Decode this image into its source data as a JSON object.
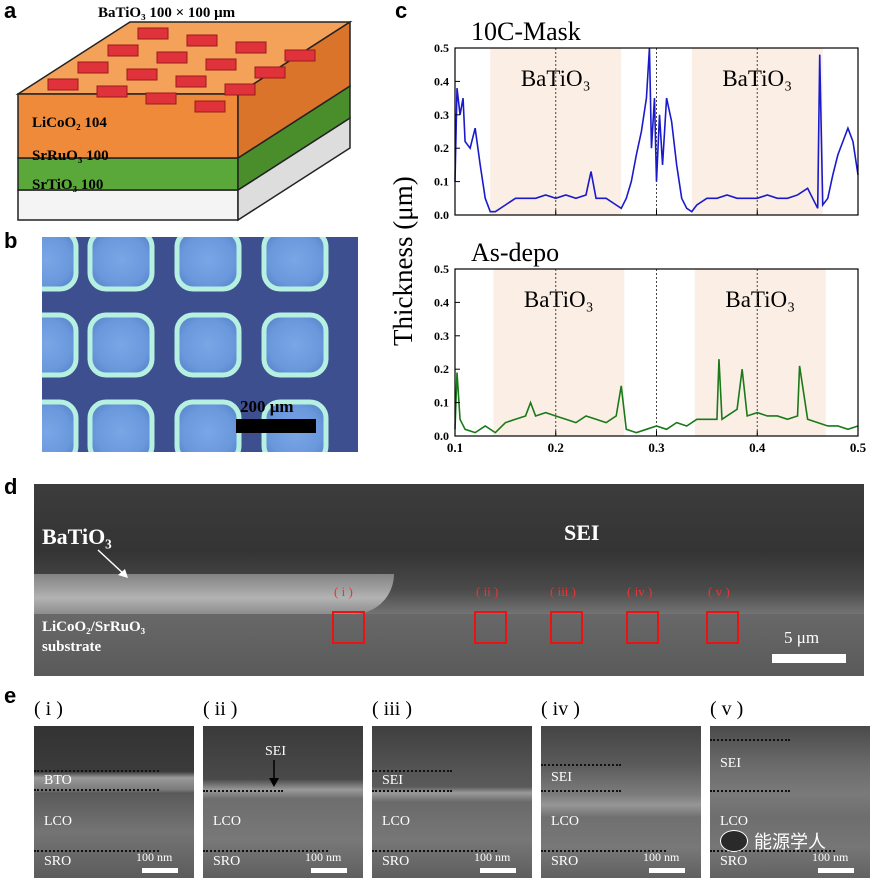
{
  "panels": {
    "a": "a",
    "b": "b",
    "c": "c",
    "d": "d",
    "e": "e"
  },
  "panel_a": {
    "title": "BaTiO₃ 100 × 100 μm",
    "layer1": "LiCoO₂ 104",
    "layer2": "SrRuO₃ 100",
    "layer3": "SrTiO₃ 100",
    "colors": {
      "lco": "#f08a3c",
      "sro": "#5fa93a",
      "sto": "#f2f2f2",
      "bto": "#e0323a"
    }
  },
  "panel_b": {
    "scale": "200 μm"
  },
  "panel_c": {
    "ylabel": "Thickness  (μm)",
    "top_title": "10C-Mask",
    "bottom_title": "As-depo",
    "region_label": "BaTiO₃"
  },
  "chart_data": [
    {
      "type": "line",
      "title": "10C-Mask",
      "ylabel": "Thickness (μm)",
      "xlim": [
        0.1,
        0.5
      ],
      "ylim": [
        0.0,
        0.5
      ],
      "xticks": [
        "0.1",
        "0.2",
        "0.3",
        "0.4",
        "0.5"
      ],
      "yticks": [
        "0.0",
        "0.1",
        "0.2",
        "0.3",
        "0.4",
        "0.5"
      ],
      "shaded_regions": [
        [
          0.135,
          0.265
        ],
        [
          0.335,
          0.465
        ]
      ],
      "shaded_labels": [
        "BaTiO₃",
        "BaTiO₃"
      ],
      "dashed_lines": [
        0.2,
        0.3,
        0.4
      ],
      "series": [
        {
          "name": "10C-Mask",
          "color": "#1a1acc",
          "x": [
            0.1,
            0.102,
            0.105,
            0.108,
            0.11,
            0.115,
            0.12,
            0.125,
            0.13,
            0.135,
            0.14,
            0.15,
            0.16,
            0.17,
            0.18,
            0.19,
            0.2,
            0.21,
            0.22,
            0.23,
            0.235,
            0.24,
            0.25,
            0.26,
            0.265,
            0.27,
            0.275,
            0.28,
            0.285,
            0.29,
            0.293,
            0.295,
            0.298,
            0.3,
            0.303,
            0.306,
            0.31,
            0.315,
            0.32,
            0.325,
            0.33,
            0.335,
            0.34,
            0.35,
            0.36,
            0.37,
            0.38,
            0.39,
            0.4,
            0.41,
            0.42,
            0.43,
            0.44,
            0.45,
            0.455,
            0.46,
            0.462,
            0.465,
            0.47,
            0.475,
            0.48,
            0.485,
            0.49,
            0.495,
            0.5
          ],
          "y": [
            0.1,
            0.38,
            0.3,
            0.35,
            0.22,
            0.2,
            0.26,
            0.15,
            0.05,
            0.01,
            0.01,
            0.03,
            0.05,
            0.05,
            0.05,
            0.06,
            0.05,
            0.06,
            0.05,
            0.06,
            0.13,
            0.05,
            0.05,
            0.03,
            0.02,
            0.05,
            0.1,
            0.18,
            0.25,
            0.35,
            0.5,
            0.2,
            0.35,
            0.1,
            0.3,
            0.15,
            0.35,
            0.28,
            0.15,
            0.05,
            0.02,
            0.01,
            0.03,
            0.05,
            0.05,
            0.06,
            0.05,
            0.05,
            0.05,
            0.06,
            0.05,
            0.05,
            0.06,
            0.08,
            0.05,
            0.02,
            0.48,
            0.03,
            0.05,
            0.12,
            0.18,
            0.22,
            0.26,
            0.22,
            0.12
          ]
        }
      ]
    },
    {
      "type": "line",
      "title": "As-depo",
      "ylabel": "Thickness (μm)",
      "xlim": [
        0.1,
        0.5
      ],
      "ylim": [
        0.0,
        0.5
      ],
      "xticks": [
        "0.1",
        "0.2",
        "0.3",
        "0.4",
        "0.5"
      ],
      "yticks": [
        "0.0",
        "0.1",
        "0.2",
        "0.3",
        "0.4",
        "0.5"
      ],
      "shaded_regions": [
        [
          0.138,
          0.268
        ],
        [
          0.338,
          0.468
        ]
      ],
      "shaded_labels": [
        "BaTiO₃",
        "BaTiO₃"
      ],
      "dashed_lines": [
        0.2,
        0.3,
        0.4
      ],
      "series": [
        {
          "name": "As-depo",
          "color": "#1a7a1a",
          "x": [
            0.1,
            0.102,
            0.105,
            0.11,
            0.12,
            0.13,
            0.14,
            0.15,
            0.16,
            0.17,
            0.175,
            0.18,
            0.19,
            0.2,
            0.21,
            0.22,
            0.23,
            0.24,
            0.25,
            0.26,
            0.265,
            0.27,
            0.28,
            0.29,
            0.3,
            0.31,
            0.32,
            0.33,
            0.34,
            0.35,
            0.36,
            0.362,
            0.365,
            0.37,
            0.38,
            0.385,
            0.39,
            0.4,
            0.41,
            0.42,
            0.43,
            0.44,
            0.442,
            0.45,
            0.46,
            0.47,
            0.48,
            0.49,
            0.5
          ],
          "y": [
            0.02,
            0.19,
            0.05,
            0.02,
            0.01,
            0.03,
            0.01,
            0.04,
            0.05,
            0.06,
            0.1,
            0.06,
            0.07,
            0.06,
            0.05,
            0.04,
            0.06,
            0.05,
            0.04,
            0.06,
            0.15,
            0.02,
            0.01,
            0.02,
            0.03,
            0.02,
            0.04,
            0.03,
            0.05,
            0.05,
            0.05,
            0.23,
            0.05,
            0.06,
            0.08,
            0.2,
            0.06,
            0.07,
            0.06,
            0.06,
            0.05,
            0.06,
            0.21,
            0.05,
            0.04,
            0.03,
            0.03,
            0.02,
            0.03
          ]
        }
      ]
    }
  ],
  "panel_d": {
    "bto": "BaTiO₃",
    "sei": "SEI",
    "substrate1": "LiCoO₂/SrRuO₃",
    "substrate2": "substrate",
    "scale": "5 μm",
    "boxes": [
      "( i )",
      "( ii )",
      "( iii )",
      "( iv )",
      "( v )"
    ]
  },
  "panel_e": {
    "labels": [
      "( i )",
      "( ii )",
      "( iii )",
      "( iv )",
      "( v )"
    ],
    "bto": "BTO",
    "sei": "SEI",
    "lco": "LCO",
    "sro": "SRO",
    "scale": "100 nm"
  },
  "watermark": "能源学人"
}
